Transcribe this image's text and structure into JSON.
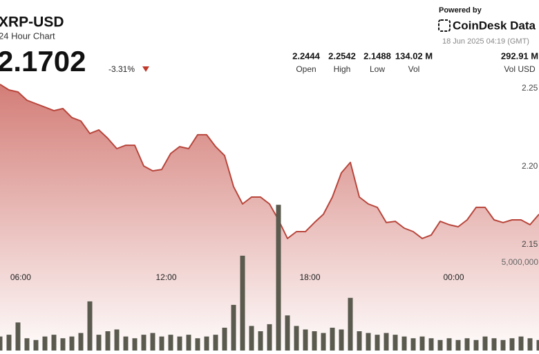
{
  "header": {
    "title": "XRP-USD",
    "subtitle": "24 Hour Chart",
    "price": "2.1702",
    "change": "-3.31%",
    "stats": [
      {
        "value": "2.2444",
        "label": "Open"
      },
      {
        "value": "2.2542",
        "label": "High"
      },
      {
        "value": "2.1488",
        "label": "Low"
      },
      {
        "value": "134.02 M",
        "label": "Vol"
      },
      {
        "value": "292.91 M",
        "label": "Vol USD"
      }
    ],
    "powered_by": "Powered by",
    "brand": "CoinDesk Data",
    "timestamp": "18 Jun 2025 04:19 (GMT)"
  },
  "chart_data": {
    "type": "line",
    "series": [
      {
        "name": "Price",
        "color": "#b8453b",
        "values": [
          2.2527,
          2.2491,
          2.2478,
          2.2425,
          2.2403,
          2.2381,
          2.2358,
          2.2372,
          2.2314,
          2.2292,
          2.2212,
          2.2235,
          2.2181,
          2.2115,
          2.2137,
          2.2137,
          2.2004,
          2.1973,
          2.1982,
          2.2084,
          2.2128,
          2.2115,
          2.2204,
          2.2204,
          2.2128,
          2.2071,
          2.1872,
          2.1761,
          2.1805,
          2.1805,
          2.1761,
          2.1659,
          2.154,
          2.1584,
          2.1584,
          2.1642,
          2.1695,
          2.1805,
          2.196,
          2.2027,
          2.1805,
          2.1761,
          2.1739,
          2.1642,
          2.165,
          2.1606,
          2.1584,
          2.154,
          2.1562,
          2.165,
          2.1628,
          2.1615,
          2.1659,
          2.1739,
          2.1739,
          2.1659,
          2.1642,
          2.1659,
          2.1659,
          2.1628,
          2.1695
        ]
      },
      {
        "name": "Volume",
        "color": "#5a5a4e",
        "axis": "y2",
        "values": [
          800000,
          900000,
          1600000,
          700000,
          600000,
          800000,
          900000,
          700000,
          800000,
          1000000,
          2800000,
          900000,
          1100000,
          1200000,
          800000,
          700000,
          900000,
          1000000,
          800000,
          900000,
          800000,
          900000,
          700000,
          800000,
          900000,
          1300000,
          2600000,
          5400000,
          1400000,
          1100000,
          1500000,
          8300000,
          2000000,
          1400000,
          1200000,
          1100000,
          1000000,
          1300000,
          1200000,
          3000000,
          1100000,
          1000000,
          900000,
          1000000,
          900000,
          800000,
          700000,
          800000,
          700000,
          600000,
          700000,
          600000,
          700000,
          600000,
          800000,
          700000,
          600000,
          700000,
          800000,
          700000,
          600000
        ]
      }
    ],
    "xlim": [
      0,
      60
    ],
    "xticks": [
      {
        "value": 2.3,
        "label": "06:00"
      },
      {
        "value": 18.5,
        "label": "12:00"
      },
      {
        "value": 34.5,
        "label": "18:00"
      },
      {
        "value": 50.5,
        "label": "00:00"
      }
    ],
    "ylim": [
      2.142,
      2.258
    ],
    "yticks": [
      2.25,
      {
        "value": 2.2,
        "label": "2.20"
      },
      2.15
    ],
    "y2lim": [
      0,
      20000000
    ],
    "y2ticks": [
      {
        "value": 5000000,
        "label": "5,000,000"
      }
    ]
  }
}
